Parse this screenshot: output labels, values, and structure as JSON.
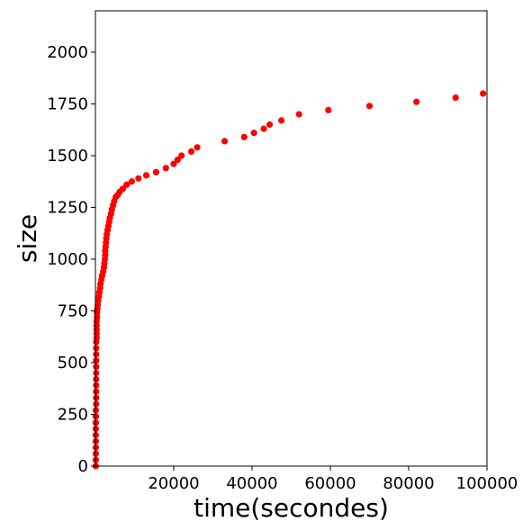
{
  "chart_data": {
    "type": "scatter",
    "title": "",
    "xlabel": "time(secondes)",
    "ylabel": "size",
    "xlim": [
      0,
      100000
    ],
    "ylim": [
      0,
      2200
    ],
    "xticks": [
      20000,
      40000,
      60000,
      80000,
      100000
    ],
    "yticks": [
      0,
      250,
      500,
      750,
      1000,
      1250,
      1500,
      1750,
      2000
    ],
    "grid": false,
    "legend": "none",
    "marker_color": "#ff0000",
    "series": [
      {
        "x": [
          100,
          100,
          100,
          100,
          100,
          100,
          100,
          100,
          100,
          100,
          200,
          200,
          200,
          200,
          200,
          200,
          200,
          200,
          200,
          200,
          200,
          300,
          300,
          300,
          300,
          300,
          400,
          400,
          500,
          600,
          700,
          900,
          1000,
          1200,
          1300,
          1500,
          1700,
          2000,
          2200,
          2300,
          2400,
          2500,
          2500,
          2600,
          2700,
          2800,
          2900,
          3100,
          3300,
          3500,
          3700,
          4000,
          4200,
          4500,
          4800,
          5200,
          5700,
          6200,
          7000,
          8000,
          9300,
          11000,
          13000,
          15500,
          18000,
          20000,
          21000,
          22000,
          24500,
          26000,
          33000,
          38000,
          40500,
          43000,
          44500,
          47500,
          52000,
          59500,
          70000,
          82000,
          92000,
          99000
        ],
        "y": [
          0,
          30,
          60,
          90,
          120,
          150,
          180,
          210,
          240,
          270,
          300,
          330,
          360,
          390,
          420,
          450,
          480,
          510,
          540,
          570,
          600,
          620,
          640,
          660,
          680,
          700,
          720,
          740,
          760,
          780,
          800,
          820,
          840,
          860,
          880,
          900,
          920,
          940,
          960,
          980,
          1000,
          1020,
          1040,
          1060,
          1080,
          1100,
          1120,
          1140,
          1160,
          1180,
          1200,
          1220,
          1240,
          1260,
          1280,
          1300,
          1310,
          1325,
          1340,
          1360,
          1375,
          1390,
          1405,
          1420,
          1440,
          1460,
          1480,
          1500,
          1520,
          1540,
          1570,
          1590,
          1610,
          1630,
          1650,
          1670,
          1700,
          1720,
          1740,
          1760,
          1780,
          1800
        ]
      }
    ]
  }
}
